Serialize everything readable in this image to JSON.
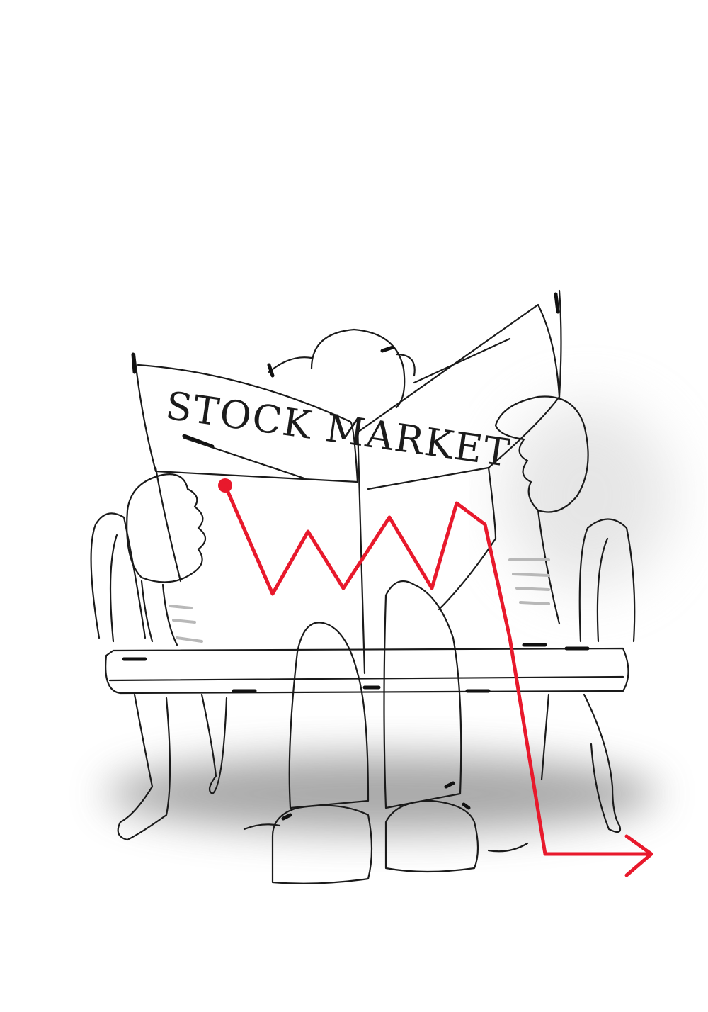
{
  "illustration": {
    "headline": "STOCK MARKET",
    "colors": {
      "ink": "#1a1a1a",
      "trend_line": "#e8192c",
      "shadow": "#9a9a9a",
      "paper": "#ffffff"
    },
    "icons": [
      "newspaper-icon",
      "bench-icon",
      "falling-trend-arrow-icon"
    ]
  }
}
